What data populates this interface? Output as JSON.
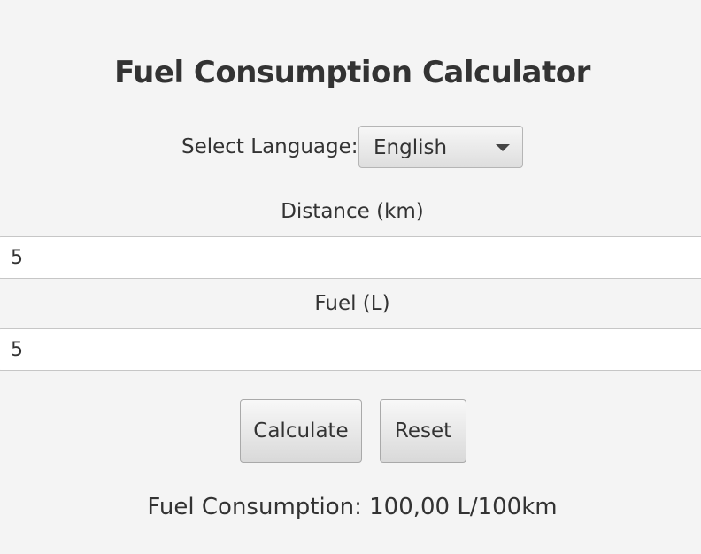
{
  "app": {
    "title": "Fuel Consumption Calculator"
  },
  "language": {
    "label": "Select Language:",
    "selected": "English",
    "icon": "chevron-down-icon"
  },
  "distance": {
    "label": "Distance (km)",
    "value": "5"
  },
  "fuel": {
    "label": "Fuel (L)",
    "value": "5"
  },
  "buttons": {
    "calculate": "Calculate",
    "reset": "Reset"
  },
  "result": {
    "text": "Fuel Consumption: 100,00 L/100km"
  }
}
